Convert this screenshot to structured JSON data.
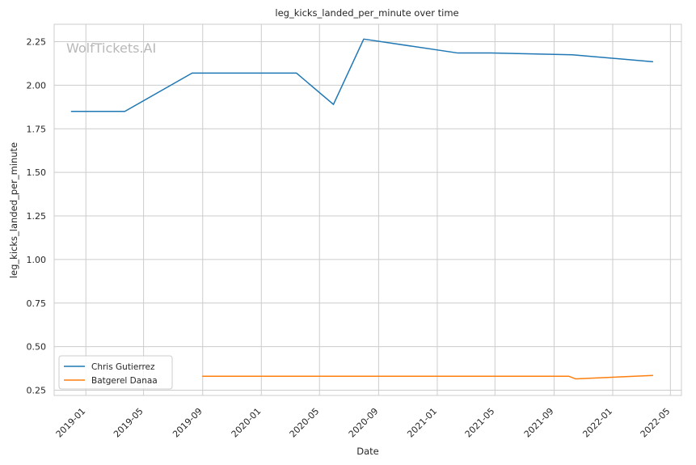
{
  "watermark": "WolfTickets.AI",
  "chart_data": {
    "type": "line",
    "title": "leg_kicks_landed_per_minute over time",
    "xlabel": "Date",
    "ylabel": "leg_kicks_landed_per_minute",
    "x_ticks": [
      "2019-01",
      "2019-05",
      "2019-09",
      "2020-01",
      "2020-05",
      "2020-09",
      "2021-01",
      "2021-05",
      "2021-09",
      "2022-01",
      "2022-05"
    ],
    "y_ticks": [
      "0.25",
      "0.50",
      "0.75",
      "1.00",
      "1.25",
      "1.50",
      "1.75",
      "2.00",
      "2.25"
    ],
    "xlim": [
      "2018-10-27",
      "2022-05-24"
    ],
    "ylim": [
      0.22,
      2.35
    ],
    "grid": true,
    "legend_position": "lower-left",
    "series": [
      {
        "name": "Chris Gutierrez",
        "color": "#1f77b4",
        "x": [
          "2018-12-01",
          "2019-03-23",
          "2019-08-10",
          "2020-03-14",
          "2020-05-30",
          "2020-08-01",
          "2021-02-13",
          "2021-04-24",
          "2021-10-09",
          "2022-03-26"
        ],
        "y": [
          1.85,
          1.85,
          2.07,
          2.07,
          1.89,
          2.265,
          2.185,
          2.185,
          2.175,
          2.135
        ]
      },
      {
        "name": "Batgerel Danaa",
        "color": "#ff7f0e",
        "x": [
          "2019-08-31",
          "2021-10-02",
          "2021-10-16",
          "2022-03-26"
        ],
        "y": [
          0.33,
          0.33,
          0.315,
          0.335
        ]
      }
    ]
  }
}
